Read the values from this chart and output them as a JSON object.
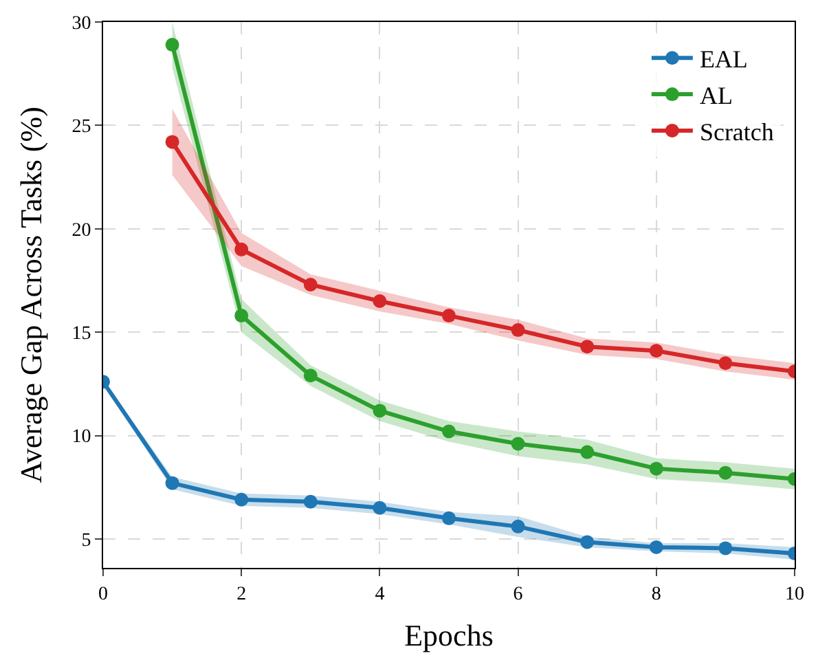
{
  "chart_data": {
    "type": "line",
    "xlabel": "Epochs",
    "ylabel": "Average Gap Across Tasks (%)",
    "x": [
      0,
      1,
      2,
      3,
      4,
      5,
      6,
      7,
      8,
      9,
      10
    ],
    "series": [
      {
        "name": "EAL",
        "color": "#1f77b4",
        "values": [
          12.6,
          7.7,
          6.9,
          6.8,
          6.5,
          6.0,
          5.6,
          4.85,
          4.6,
          4.55,
          4.3
        ],
        "lower": [
          12.5,
          7.4,
          6.6,
          6.5,
          6.2,
          5.7,
          5.1,
          4.6,
          4.4,
          4.3,
          4.0
        ],
        "upper": [
          12.7,
          8.0,
          7.2,
          7.1,
          6.8,
          6.3,
          6.1,
          5.1,
          4.8,
          4.8,
          4.6
        ]
      },
      {
        "name": "AL",
        "color": "#2ca02c",
        "values": [
          null,
          28.9,
          15.8,
          12.9,
          11.2,
          10.2,
          9.6,
          9.2,
          8.4,
          8.2,
          7.9
        ],
        "lower": [
          null,
          27.8,
          15.0,
          12.4,
          10.7,
          9.7,
          9.0,
          8.6,
          7.9,
          7.7,
          7.4
        ],
        "upper": [
          null,
          30.0,
          16.6,
          13.4,
          11.7,
          10.7,
          10.2,
          9.8,
          8.9,
          8.7,
          8.4
        ]
      },
      {
        "name": "Scratch",
        "color": "#d62728",
        "values": [
          null,
          24.2,
          19.0,
          17.3,
          16.5,
          15.8,
          15.1,
          14.3,
          14.1,
          13.5,
          13.1
        ],
        "lower": [
          null,
          22.6,
          18.2,
          16.8,
          16.0,
          15.4,
          14.6,
          13.9,
          13.7,
          13.1,
          12.7
        ],
        "upper": [
          null,
          25.8,
          19.8,
          17.8,
          17.0,
          16.2,
          15.6,
          14.7,
          14.5,
          13.9,
          13.5
        ]
      }
    ],
    "xlim": [
      0,
      10
    ],
    "xticks": [
      0,
      2,
      4,
      6,
      8,
      10
    ],
    "ylim": [
      3.6,
      30
    ],
    "yticks": [
      5,
      10,
      15,
      20,
      25,
      30
    ],
    "grid": true,
    "legend": "top right",
    "marker": "circle",
    "line_style": "solid"
  }
}
